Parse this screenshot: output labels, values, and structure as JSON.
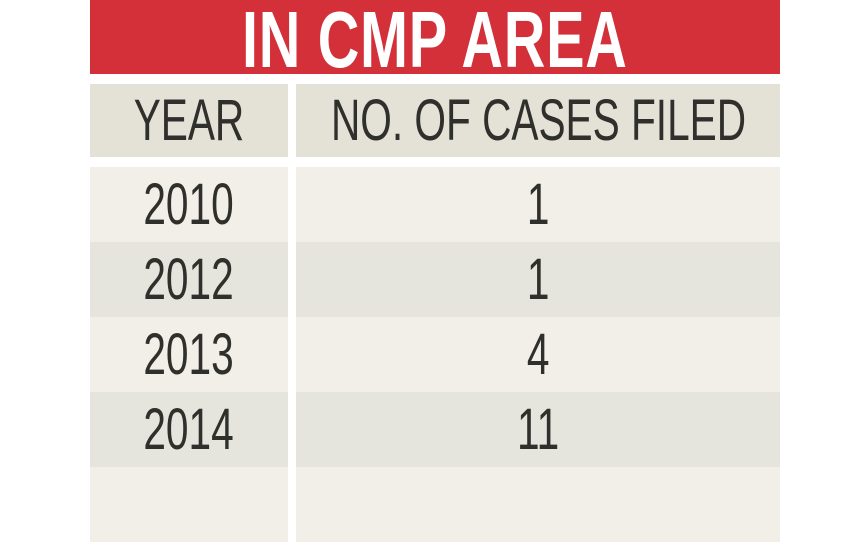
{
  "banner": {
    "title": "IN CMP AREA"
  },
  "table": {
    "headers": {
      "year": "YEAR",
      "cases": "NO. OF CASES FILED"
    },
    "rows": [
      {
        "year": "2010",
        "cases": "1"
      },
      {
        "year": "2012",
        "cases": "1"
      },
      {
        "year": "2013",
        "cases": "4"
      },
      {
        "year": "2014",
        "cases": "11"
      },
      {
        "year": "",
        "cases": ""
      }
    ]
  },
  "colors": {
    "banner_red": "#d3303a",
    "header_bg": "#e4e2d7",
    "row_light": "#f1efe8",
    "row_dark": "#e6e5dd",
    "text": "#2f2f2c"
  }
}
